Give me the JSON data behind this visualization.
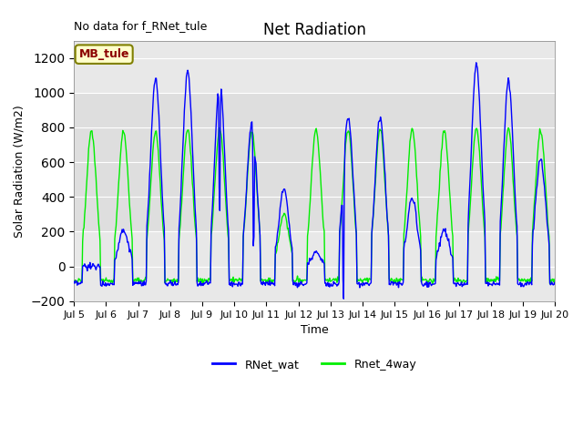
{
  "title": "Net Radiation",
  "xlabel": "Time",
  "ylabel": "Solar Radiation (W/m2)",
  "ylim": [
    -200,
    1300
  ],
  "yticks": [
    -200,
    0,
    200,
    400,
    600,
    800,
    1000,
    1200
  ],
  "annotation_text": "No data for f_RNet_tule",
  "legend_box_text": "MB_tule",
  "line1_color": "#0000ff",
  "line2_color": "#00ee00",
  "line1_label": "RNet_wat",
  "line2_label": "Rnet_4way",
  "line_width": 1.0,
  "plot_bg_color": "#e8e8e8",
  "fig_bg_color": "#ffffff",
  "gray_band_ymin": 200,
  "gray_band_ymax": 1000,
  "xtick_start": 5,
  "xtick_end": 20,
  "blue_peaks": [
    0,
    210,
    1080,
    1120,
    1080,
    830,
    450,
    80,
    860,
    860,
    400,
    210,
    1170,
    1070,
    620,
    610,
    60,
    980,
    940,
    450
  ],
  "green_peaks": [
    780,
    780,
    770,
    790,
    790,
    775,
    300,
    790,
    790,
    790,
    790,
    780,
    800,
    790,
    790,
    780,
    780,
    760,
    790,
    770
  ],
  "night_blue": -100,
  "night_green": -80,
  "day_start": 0.27,
  "day_end": 0.82
}
